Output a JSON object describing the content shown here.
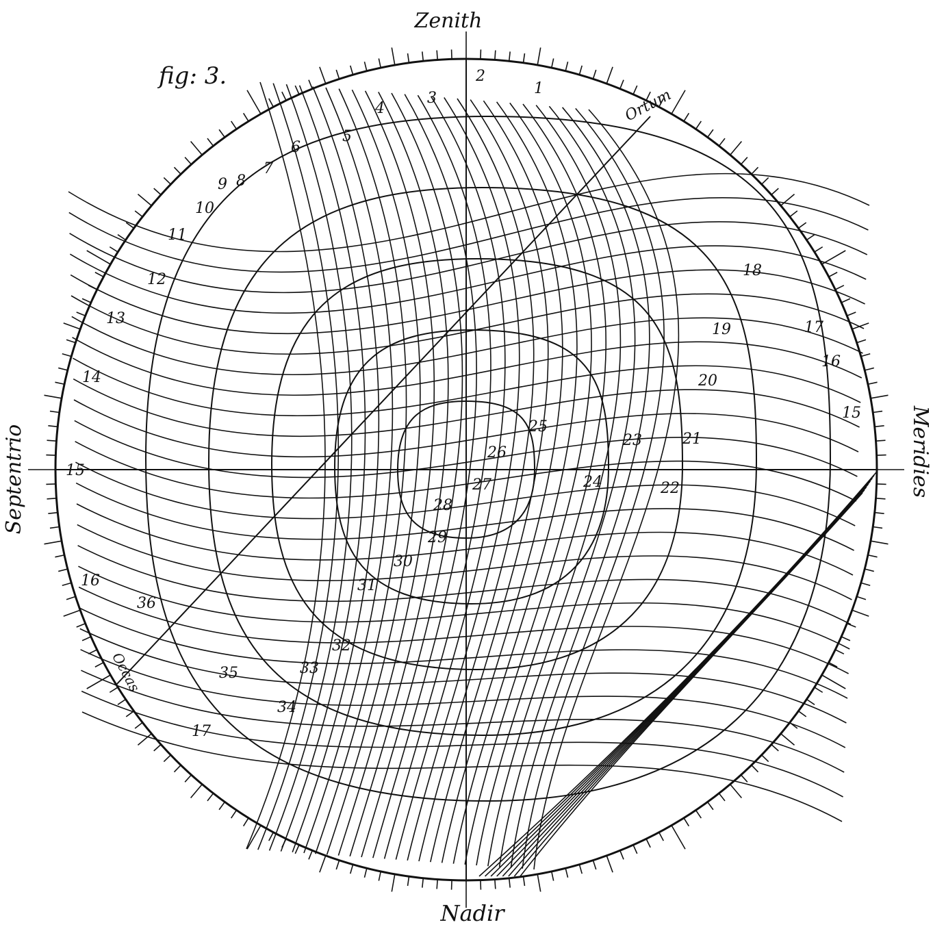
{
  "figure_label": "fig: 3.",
  "compass": {
    "top": "Zenith",
    "bottom": "Nadir",
    "left": "Septentrio",
    "right": "Meridies",
    "upper_right_arc": "Ortum",
    "lower_left_arc": "Occas"
  },
  "numbers": [
    "1",
    "2",
    "3",
    "4",
    "5",
    "6",
    "7",
    "8",
    "9",
    "10",
    "11",
    "12",
    "13",
    "14",
    "15",
    "16",
    "17",
    "15",
    "16",
    "17",
    "18",
    "19",
    "20",
    "21",
    "22",
    "23",
    "24",
    "25",
    "26",
    "27",
    "28",
    "29",
    "30",
    "31",
    "32",
    "33",
    "34",
    "35",
    "36"
  ],
  "colors": {
    "ink": "#111111",
    "paper": "#ffffff"
  }
}
